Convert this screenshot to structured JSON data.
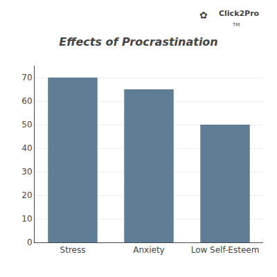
{
  "chart_data": {
    "type": "bar",
    "title": "Effects of Procrastination",
    "categories": [
      "Stress",
      "Anxiety",
      "Low Self-Esteem"
    ],
    "values": [
      70,
      65,
      50
    ],
    "color": "#607d96",
    "ylim": [
      0,
      75
    ],
    "yticks": [
      0,
      10,
      20,
      30,
      40,
      50,
      60,
      70
    ],
    "grid": true,
    "annotations": [
      "✿",
      "Click2Pro",
      "TM"
    ]
  }
}
